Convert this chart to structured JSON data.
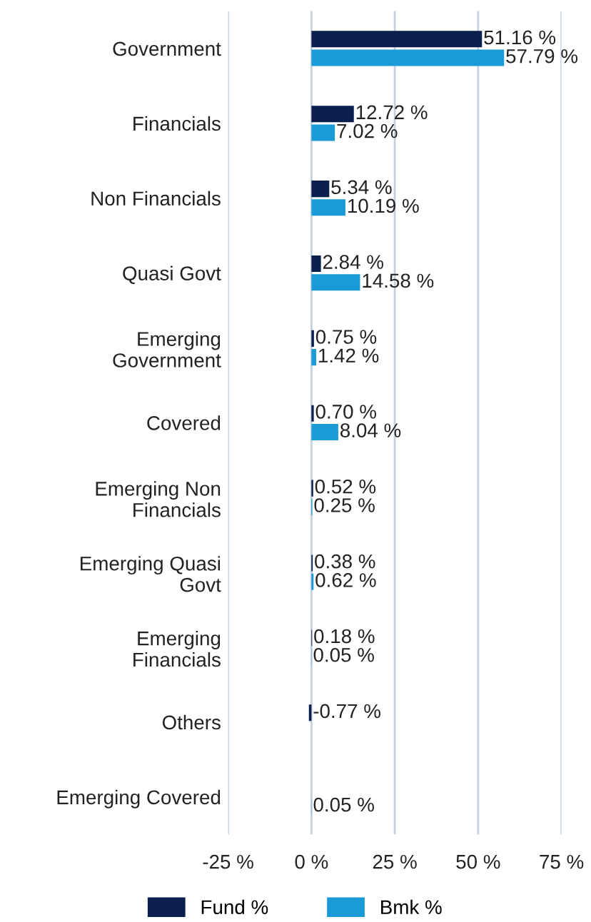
{
  "chart_data": {
    "type": "bar",
    "orientation": "horizontal",
    "categories": [
      "Government",
      "Financials",
      "Non Financials",
      "Quasi Govt",
      "Emerging\nGovernment",
      "Covered",
      "Emerging Non\nFinancials",
      "Emerging Quasi\nGovt",
      "Emerging\nFinancials",
      "Others",
      "Emerging Covered"
    ],
    "series": [
      {
        "name": "Fund %",
        "color": "#0b1f4f",
        "values": [
          51.16,
          12.72,
          5.34,
          2.84,
          0.75,
          0.7,
          0.52,
          0.38,
          0.18,
          -0.77,
          null
        ],
        "value_labels": [
          "51.16 %",
          "12.72 %",
          "5.34 %",
          "2.84 %",
          "0.75 %",
          "0.70 %",
          "0.52 %",
          "0.38 %",
          "0.18 %",
          "-0.77 %",
          null
        ]
      },
      {
        "name": "Bmk %",
        "color": "#1a9ad6",
        "values": [
          57.79,
          7.02,
          10.19,
          14.58,
          1.42,
          8.04,
          0.25,
          0.62,
          0.05,
          null,
          0.05
        ],
        "value_labels": [
          "57.79 %",
          "7.02 %",
          "10.19 %",
          "14.58 %",
          "1.42 %",
          "8.04 %",
          "0.25 %",
          "0.62 %",
          "0.05 %",
          null,
          "0.05 %"
        ]
      }
    ],
    "xlim": [
      -25,
      75
    ],
    "xticks": [
      {
        "value": -25,
        "label": "-25 %"
      },
      {
        "value": 0,
        "label": "0 %"
      },
      {
        "value": 25,
        "label": "25 %"
      },
      {
        "value": 50,
        "label": "50 %"
      },
      {
        "value": 75,
        "label": "75 %"
      }
    ],
    "grid": "x",
    "legend": "bottom"
  }
}
